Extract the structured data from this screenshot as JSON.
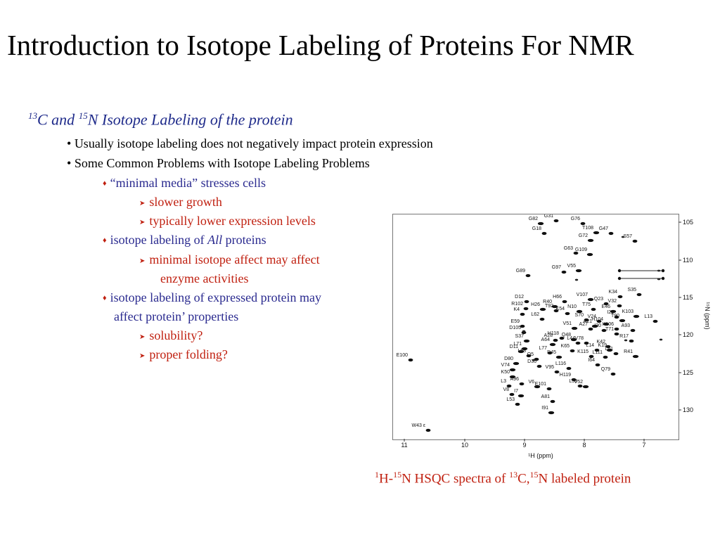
{
  "slide": {
    "title": "Introduction to Isotope Labeling of Proteins For NMR",
    "subtitle": {
      "sup1": "13",
      "part1": "C and ",
      "sup2": "15",
      "part2": "N Isotope Labeling of the protein"
    },
    "bullets": [
      "Usually isotope labeling does not negatively impact protein expression",
      "Some Common Problems with Isotope Labeling Problems"
    ],
    "problems": {
      "p1": "“minimal media” stresses cells",
      "p1_a": "slower growth",
      "p1_b": "typically lower expression levels",
      "p2_pre": "isotope labeling of ",
      "p2_em": "All",
      "p2_post": " proteins",
      "p2_a1": "minimal isotope affect may affect",
      "p2_a2": "enzyme activities",
      "p3_l1": "isotope labeling of expressed protein may",
      "p3_l2": "affect protein’ properties",
      "p3_a": "solubility?",
      "p3_b": "proper folding?"
    },
    "caption": {
      "s1": "1",
      "t1": "H-",
      "s2": "15",
      "t2": "N HSQC spectra of ",
      "s3": "13",
      "t3": "C,",
      "s4": "15",
      "t4": "N labeled protein"
    },
    "spectrum": {
      "x_axis_label": "¹H (ppm)",
      "y_axis_label": "¹⁵N (ppm)",
      "x_ticks": [
        "11",
        "10",
        "9",
        "8",
        "7"
      ],
      "y_ticks": [
        "105",
        "110",
        "115",
        "120",
        "125",
        "130"
      ],
      "peak_labels": [
        "G82",
        "G31",
        "G76",
        "T108",
        "G47",
        "G18",
        "G72",
        "S57",
        "G63",
        "G109",
        "G89",
        "G97",
        "V55",
        "D12",
        "H66",
        "V107",
        "K34",
        "S35",
        "R40",
        "Q23",
        "R102",
        "H26",
        "T92",
        "V32",
        "E46",
        "K4",
        "K54",
        "N10",
        "T75",
        "I29",
        "K103",
        "L62",
        "S70",
        "T90",
        "E59",
        "V24",
        "H104",
        "L13",
        "D105",
        "A21",
        "K106",
        "A93",
        "V51",
        "A27",
        "I30",
        "S37",
        "H118",
        "A28",
        "Q48",
        "T71",
        "R17",
        "A64",
        "L44",
        "V78",
        "L71",
        "K42",
        "K65",
        "D11",
        "L77",
        "L14",
        "K19",
        "L58",
        "L61",
        "D45",
        "K115",
        "L111",
        "R41",
        "Q5",
        "I64",
        "D80",
        "D36",
        "L116",
        "V74",
        "V95",
        "Q79",
        "K50",
        "H119",
        "A96",
        "V6",
        "E101",
        "L39",
        "V52",
        "L3",
        "V8",
        "I7",
        "A81",
        "L53",
        "I91",
        "E100",
        "W43 ε"
      ]
    }
  }
}
